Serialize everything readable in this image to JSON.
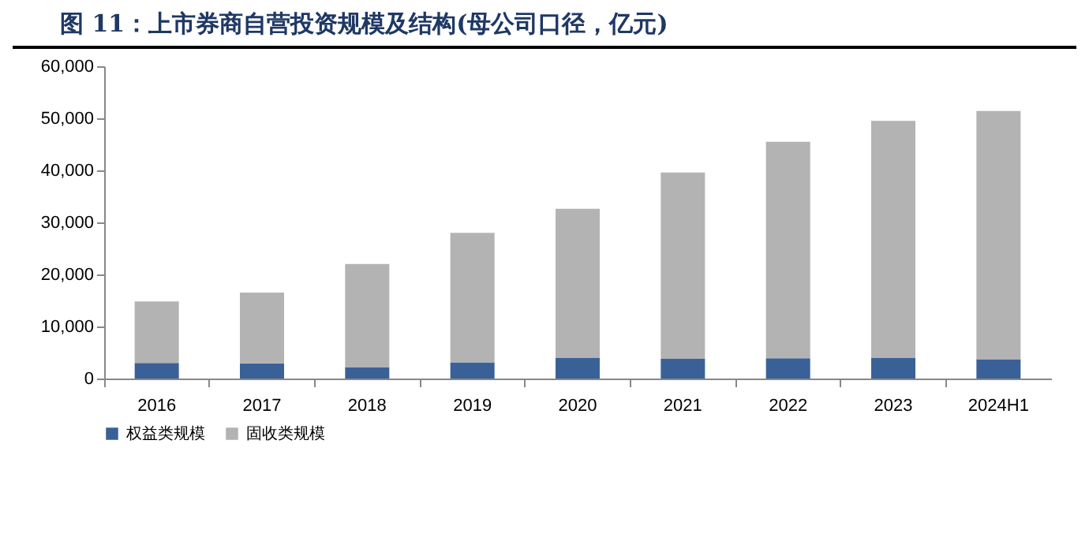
{
  "chart_data": {
    "type": "bar",
    "title": "图 11：上市券商自营投资规模及结构(母公司口径，亿元)",
    "categories": [
      "2016",
      "2017",
      "2018",
      "2019",
      "2020",
      "2021",
      "2022",
      "2023",
      "2024H1"
    ],
    "stacked": true,
    "series": [
      {
        "name": "权益类规模",
        "color": "#3a6197",
        "values": [
          3000,
          2900,
          2200,
          3100,
          4000,
          3800,
          3900,
          4000,
          3700
        ]
      },
      {
        "name": "固收类规模",
        "color": "#b3b3b3",
        "values": [
          11800,
          13600,
          19800,
          24900,
          28600,
          35800,
          41600,
          45500,
          47700
        ]
      }
    ],
    "ylim": [
      0,
      60000
    ],
    "yticks": [
      {
        "value": 0,
        "label": "0"
      },
      {
        "value": 10000,
        "label": "10,000"
      },
      {
        "value": 20000,
        "label": "20,000"
      },
      {
        "value": 30000,
        "label": "30,000"
      },
      {
        "value": 40000,
        "label": "40,000"
      },
      {
        "value": 50000,
        "label": "50,000"
      },
      {
        "value": 60000,
        "label": "60,000"
      }
    ],
    "grid": false,
    "legend": "bottom"
  }
}
